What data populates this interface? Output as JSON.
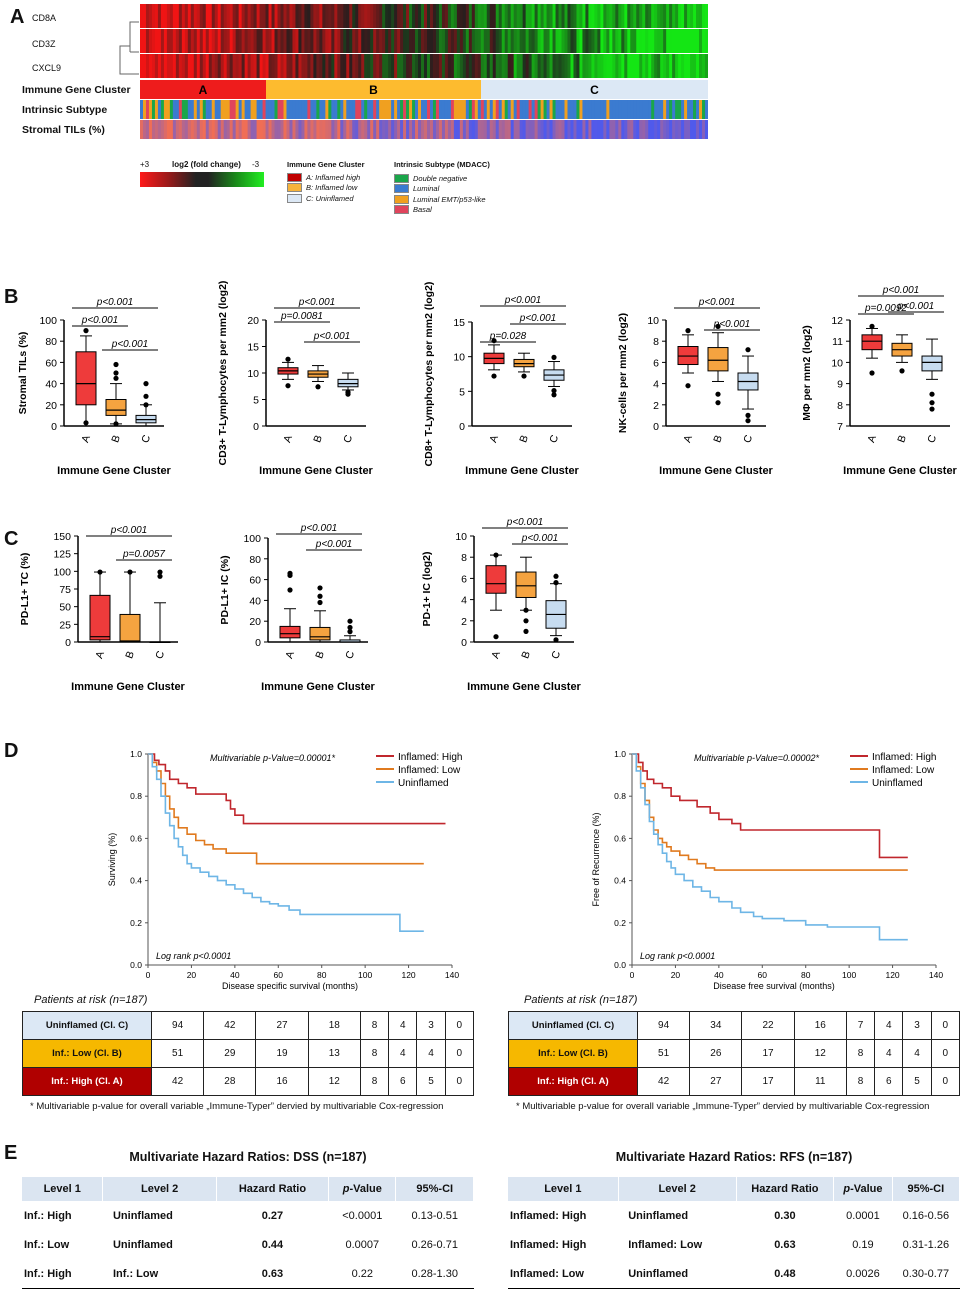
{
  "panels": {
    "a": "A",
    "b": "B",
    "c": "C",
    "d": "D",
    "e": "E"
  },
  "panelA": {
    "genes": [
      "CD8A",
      "CD3Z",
      "CXCL9"
    ],
    "row_labels": [
      "Immune Gene Cluster",
      "Intrinsic Subtype",
      "Stromal TILs (%)"
    ],
    "clusters": [
      "A",
      "B",
      "C"
    ],
    "cluster_colors": {
      "A": "#ee1c1c",
      "B": "#fdbb2f",
      "C": "#dce8f5"
    },
    "scale": {
      "max": "+3",
      "label": "log2 (fold change)",
      "min": "-3"
    },
    "legend_cluster": {
      "title": "Immune Gene Cluster",
      "items": [
        "A: Inflamed high",
        "B: Inflamed low",
        "C: Uninflamed"
      ],
      "colors": [
        "#c00000",
        "#f6b33c",
        "#dce8f5"
      ]
    },
    "legend_subtype": {
      "title": "Intrinsic Subtype (MDACC)",
      "items": [
        "Double negative",
        "Luminal",
        "Luminal EMT/p53-like",
        "Basal"
      ],
      "colors": [
        "#1aa64a",
        "#3b7bd0",
        "#f0a020",
        "#e0445c"
      ]
    }
  },
  "panelB": [
    {
      "ylabel": "Stromal  TILs (%)",
      "yticks": [
        "0",
        "20",
        "40",
        "60",
        "80",
        "100"
      ],
      "ymax": 100,
      "pvals": [
        "p<0.001",
        "p<0.001",
        "p<0.001"
      ],
      "cats": [
        "A",
        "B",
        "C"
      ],
      "xlabel": "Immune  Gene Cluster"
    },
    {
      "ylabel": "CD3+ T-Lymphocytes per mm2 (log2)",
      "yticks": [
        "0",
        "5",
        "10",
        "15",
        "20"
      ],
      "ymax": 20,
      "pvals": [
        "p<0.001",
        "p=0.0081",
        "p<0.001"
      ],
      "cats": [
        "A",
        "B",
        "C"
      ],
      "xlabel": "Immune  Gene Cluster"
    },
    {
      "ylabel": "CD8+ T-Lymphocytes per mm2 (log2)",
      "yticks": [
        "0",
        "5",
        "10",
        "15"
      ],
      "ymax": 15,
      "pvals": [
        "p<0.001",
        "p=0.028",
        "p<0.001"
      ],
      "cats": [
        "A",
        "B",
        "C"
      ],
      "xlabel": "Immune  Gene Cluster"
    },
    {
      "ylabel": "NK-cells per mm2 (log2)",
      "yticks": [
        "0",
        "2",
        "4",
        "6",
        "8",
        "10"
      ],
      "ymax": 10,
      "pvals": [
        "p<0.001",
        "p<0.001"
      ],
      "cats": [
        "A",
        "B",
        "C"
      ],
      "xlabel": "Immune  Gene Cluster"
    },
    {
      "ylabel": "MΦ per mm2 (log2)",
      "yticks": [
        "7",
        "8",
        "9",
        "10",
        "11",
        "12"
      ],
      "ymax": 12,
      "pvals": [
        "p<0.001",
        "p=0.0092",
        "p<0.001"
      ],
      "cats": [
        "A",
        "B",
        "C"
      ],
      "xlabel": "Immune  Gene Cluster"
    }
  ],
  "panelC": [
    {
      "ylabel": "PD-L1+ TC (%)",
      "yticks": [
        "0",
        "25",
        "50",
        "75",
        "100",
        "125",
        "150"
      ],
      "pvals": [
        "p<0.001",
        "p=0.0057"
      ],
      "cats": [
        "A",
        "B",
        "C"
      ],
      "xlabel": "Immune  Gene Cluster"
    },
    {
      "ylabel": "PD-L1+ IC (%)",
      "yticks": [
        "0",
        "20",
        "40",
        "60",
        "80",
        "100"
      ],
      "pvals": [
        "p<0.001",
        "p<0.001"
      ],
      "cats": [
        "A",
        "B",
        "C"
      ],
      "xlabel": "Immune  Gene Cluster"
    },
    {
      "ylabel": "PD-1+ IC (log2)",
      "yticks": [
        "0",
        "2",
        "4",
        "6",
        "8",
        "10"
      ],
      "pvals": [
        "p<0.001",
        "p<0.001"
      ],
      "cats": [
        "A",
        "B",
        "C"
      ],
      "xlabel": "Immune  Gene Cluster"
    }
  ],
  "chart_data": [
    {
      "type": "line",
      "title": "",
      "xlabel": "Disease specific survival (months)",
      "ylabel": "Surviving (%)",
      "xlim": [
        0,
        140
      ],
      "ylim": [
        0,
        1.0
      ],
      "xticks": [
        "0",
        "20",
        "40",
        "60",
        "80",
        "100",
        "120",
        "140"
      ],
      "yticks": [
        "0.0",
        "0.2",
        "0.4",
        "0.6",
        "0.8",
        "1.0"
      ],
      "annotation": "Multivariable p-Value=0.00001*",
      "logrank": "Log rank p<0.0001",
      "series": [
        {
          "name": "Inflamed: High",
          "color": "#c0272d",
          "x": [
            0,
            3,
            5,
            8,
            10,
            14,
            18,
            22,
            26,
            30,
            36,
            38,
            40,
            44,
            50,
            60,
            80,
            100,
            120,
            137
          ],
          "y": [
            1,
            0.97,
            0.95,
            0.92,
            0.88,
            0.86,
            0.84,
            0.81,
            0.81,
            0.81,
            0.78,
            0.74,
            0.71,
            0.67,
            0.67,
            0.67,
            0.67,
            0.67,
            0.67,
            0.67
          ]
        },
        {
          "name": "Inflamed: Low",
          "color": "#e07a1f",
          "x": [
            0,
            2,
            4,
            6,
            8,
            10,
            12,
            14,
            18,
            22,
            26,
            30,
            36,
            40,
            50,
            60,
            80,
            100,
            120,
            127
          ],
          "y": [
            1,
            0.96,
            0.92,
            0.86,
            0.8,
            0.74,
            0.7,
            0.65,
            0.62,
            0.59,
            0.57,
            0.55,
            0.53,
            0.53,
            0.48,
            0.48,
            0.48,
            0.48,
            0.48,
            0.48
          ]
        },
        {
          "name": "Uninflamed",
          "color": "#6eb6e6",
          "x": [
            0,
            2,
            4,
            6,
            8,
            10,
            12,
            14,
            16,
            18,
            20,
            24,
            28,
            32,
            36,
            40,
            44,
            48,
            52,
            56,
            60,
            65,
            70,
            80,
            90,
            100,
            112,
            116,
            127
          ],
          "y": [
            1,
            0.94,
            0.88,
            0.8,
            0.72,
            0.66,
            0.6,
            0.56,
            0.52,
            0.48,
            0.46,
            0.44,
            0.42,
            0.4,
            0.38,
            0.36,
            0.34,
            0.32,
            0.3,
            0.29,
            0.28,
            0.26,
            0.24,
            0.24,
            0.24,
            0.24,
            0.24,
            0.16,
            0.16
          ]
        }
      ]
    },
    {
      "type": "line",
      "title": "",
      "xlabel": "Disease free survival (months)",
      "ylabel": "Free of Recurrence (%)",
      "xlim": [
        0,
        140
      ],
      "ylim": [
        0,
        1.0
      ],
      "xticks": [
        "0",
        "20",
        "40",
        "60",
        "80",
        "100",
        "120",
        "140"
      ],
      "yticks": [
        "0.0",
        "0.2",
        "0.4",
        "0.6",
        "0.8",
        "1.0"
      ],
      "annotation": "Multivariable p-Value=0.00002*",
      "logrank": "Log rank p<0.0001",
      "series": [
        {
          "name": "Inflamed: High",
          "color": "#c0272d",
          "x": [
            0,
            3,
            5,
            7,
            10,
            14,
            18,
            22,
            26,
            30,
            36,
            40,
            46,
            50,
            60,
            80,
            100,
            112,
            114,
            127
          ],
          "y": [
            1,
            0.96,
            0.92,
            0.88,
            0.86,
            0.84,
            0.8,
            0.78,
            0.78,
            0.75,
            0.72,
            0.69,
            0.67,
            0.64,
            0.64,
            0.64,
            0.64,
            0.64,
            0.51,
            0.51
          ]
        },
        {
          "name": "Inflamed: Low",
          "color": "#e07a1f",
          "x": [
            0,
            2,
            4,
            6,
            8,
            10,
            12,
            14,
            16,
            18,
            22,
            26,
            30,
            34,
            38,
            40,
            50,
            60,
            80,
            100,
            127
          ],
          "y": [
            1,
            0.94,
            0.86,
            0.78,
            0.7,
            0.64,
            0.6,
            0.58,
            0.56,
            0.54,
            0.52,
            0.5,
            0.48,
            0.46,
            0.45,
            0.45,
            0.45,
            0.45,
            0.45,
            0.45,
            0.45
          ]
        },
        {
          "name": "Uninflamed",
          "color": "#6eb6e6",
          "x": [
            0,
            2,
            4,
            6,
            8,
            10,
            12,
            14,
            16,
            18,
            20,
            24,
            28,
            32,
            36,
            40,
            46,
            50,
            56,
            60,
            70,
            80,
            90,
            100,
            110,
            114,
            127
          ],
          "y": [
            1,
            0.92,
            0.84,
            0.76,
            0.68,
            0.62,
            0.57,
            0.53,
            0.49,
            0.46,
            0.43,
            0.4,
            0.37,
            0.35,
            0.32,
            0.3,
            0.27,
            0.25,
            0.23,
            0.22,
            0.21,
            0.19,
            0.18,
            0.18,
            0.18,
            0.12,
            0.12
          ]
        }
      ]
    }
  ],
  "risk": {
    "title": "Patients at risk (n=187)",
    "left": [
      {
        "label": "Uninflamed (Cl. C)",
        "bg": "#dce8f5",
        "color": "#111",
        "values": [
          "94",
          "42",
          "27",
          "18",
          "8",
          "4",
          "3",
          "0"
        ]
      },
      {
        "label": "Inf.: Low (Cl. B)",
        "bg": "#f6b800",
        "color": "#111",
        "values": [
          "51",
          "29",
          "19",
          "13",
          "8",
          "4",
          "4",
          "0"
        ]
      },
      {
        "label": "Inf.: High (Cl. A)",
        "bg": "#b00000",
        "color": "#fff",
        "values": [
          "42",
          "28",
          "16",
          "12",
          "8",
          "6",
          "5",
          "0"
        ]
      }
    ],
    "right": [
      {
        "label": "Uninflamed (Cl. C)",
        "bg": "#dce8f5",
        "color": "#111",
        "values": [
          "94",
          "34",
          "22",
          "16",
          "7",
          "4",
          "3",
          "0"
        ]
      },
      {
        "label": "Inf.: Low (Cl. B)",
        "bg": "#f6b800",
        "color": "#111",
        "values": [
          "51",
          "26",
          "17",
          "12",
          "8",
          "4",
          "4",
          "0"
        ]
      },
      {
        "label": "Inf.: High (Cl. A)",
        "bg": "#b00000",
        "color": "#fff",
        "values": [
          "42",
          "27",
          "17",
          "11",
          "8",
          "6",
          "5",
          "0"
        ]
      }
    ],
    "footnote": "* Multivariable p-value for overall variable „Immune-Typer” dervied by multivariable Cox-regression"
  },
  "hr_tables": [
    {
      "title": "Multivariate Hazard Ratios: DSS (n=187)",
      "headers": [
        "Level 1",
        "Level 2",
        "Hazard Ratio",
        "p-Value",
        "95%-CI"
      ],
      "rows": [
        [
          "Inf.: High",
          "Uninflamed",
          "0.27",
          "<0.0001",
          "0.13-0.51"
        ],
        [
          "Inf.: Low",
          "Uninflamed",
          "0.44",
          "0.0007",
          "0.26-0.71"
        ],
        [
          "Inf.: High",
          "Inf.: Low",
          "0.63",
          "0.22",
          "0.28-1.30"
        ]
      ]
    },
    {
      "title": "Multivariate Hazard Ratios: RFS (n=187)",
      "headers": [
        "Level 1",
        "Level 2",
        "Hazard Ratio",
        "p-Value",
        "95%-CI"
      ],
      "rows": [
        [
          "Inflamed: High",
          "Uninflamed",
          "0.30",
          "0.0001",
          "0.16-0.56"
        ],
        [
          "Inflamed: High",
          "Inflamed: Low",
          "0.63",
          "0.19",
          "0.31-1.26"
        ],
        [
          "Inflamed: Low",
          "Uninflamed",
          "0.48",
          "0.0026",
          "0.30-0.77"
        ]
      ]
    }
  ]
}
